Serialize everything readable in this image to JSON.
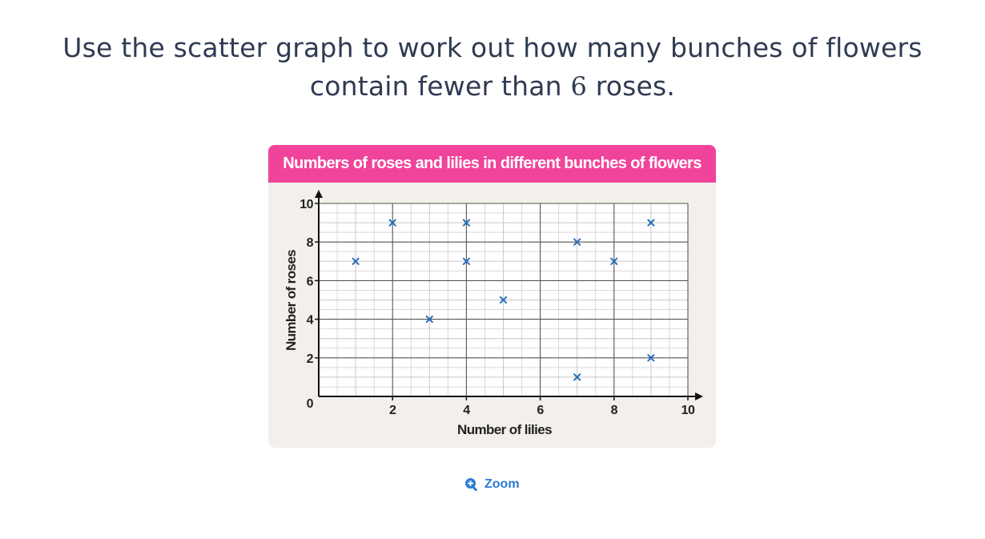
{
  "question": {
    "line1": "Use the scatter graph to work out how many bunches of flowers",
    "line2_before": "contain fewer than ",
    "line2_number": "6",
    "line2_after": " roses."
  },
  "zoom": {
    "label": "Zoom",
    "icon": "zoom-in-icon"
  },
  "colors": {
    "header": "#f0449a",
    "card_background": "#f3f0eb",
    "marker": "#2a6fb8",
    "text": "#2f3b52",
    "link": "#2b7bd3"
  },
  "chart_data": {
    "type": "scatter",
    "title": "Numbers of roses and lilies in different bunches of flowers",
    "xlabel": "Number of lilies",
    "ylabel": "Number of roses",
    "xlim": [
      0,
      10
    ],
    "ylim": [
      0,
      10
    ],
    "x_ticks": [
      2,
      4,
      6,
      8,
      10
    ],
    "y_ticks": [
      2,
      4,
      6,
      8,
      10
    ],
    "origin_label": "0",
    "marker": "x",
    "grid": true,
    "points": [
      {
        "x": 1,
        "y": 7
      },
      {
        "x": 2,
        "y": 9
      },
      {
        "x": 3,
        "y": 4
      },
      {
        "x": 4,
        "y": 9
      },
      {
        "x": 4,
        "y": 7
      },
      {
        "x": 5,
        "y": 5
      },
      {
        "x": 7,
        "y": 8
      },
      {
        "x": 7,
        "y": 1
      },
      {
        "x": 8,
        "y": 7
      },
      {
        "x": 9,
        "y": 9
      },
      {
        "x": 9,
        "y": 2
      }
    ]
  }
}
